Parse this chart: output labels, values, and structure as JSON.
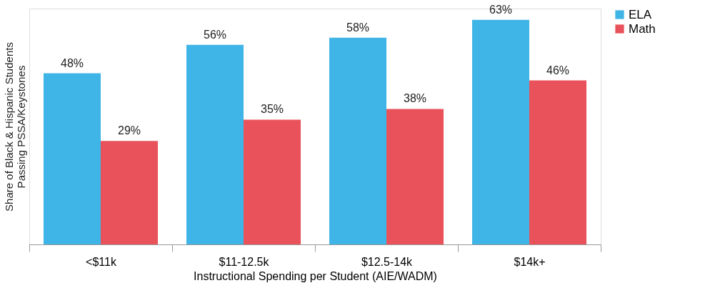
{
  "chart_data": {
    "type": "bar",
    "xlabel": "Instructional Spending per Student (AIE/WADM)",
    "ylabel": [
      "Share of Black & Hispanic Students",
      "Passing PSSA/Keystones"
    ],
    "categories": [
      "<$11k",
      "$11-12.5k",
      "$12.5-14k",
      "$14k+"
    ],
    "series": [
      {
        "name": "ELA",
        "color": "#3fb4e6",
        "values": [
          48,
          56,
          58,
          63
        ],
        "value_labels": [
          "48%",
          "56%",
          "58%",
          "63%"
        ]
      },
      {
        "name": "Math",
        "color": "#e9525a",
        "values": [
          29,
          35,
          38,
          46
        ],
        "value_labels": [
          "29%",
          "35%",
          "38%",
          "46%"
        ]
      }
    ],
    "legend": "right",
    "grid": false
  }
}
